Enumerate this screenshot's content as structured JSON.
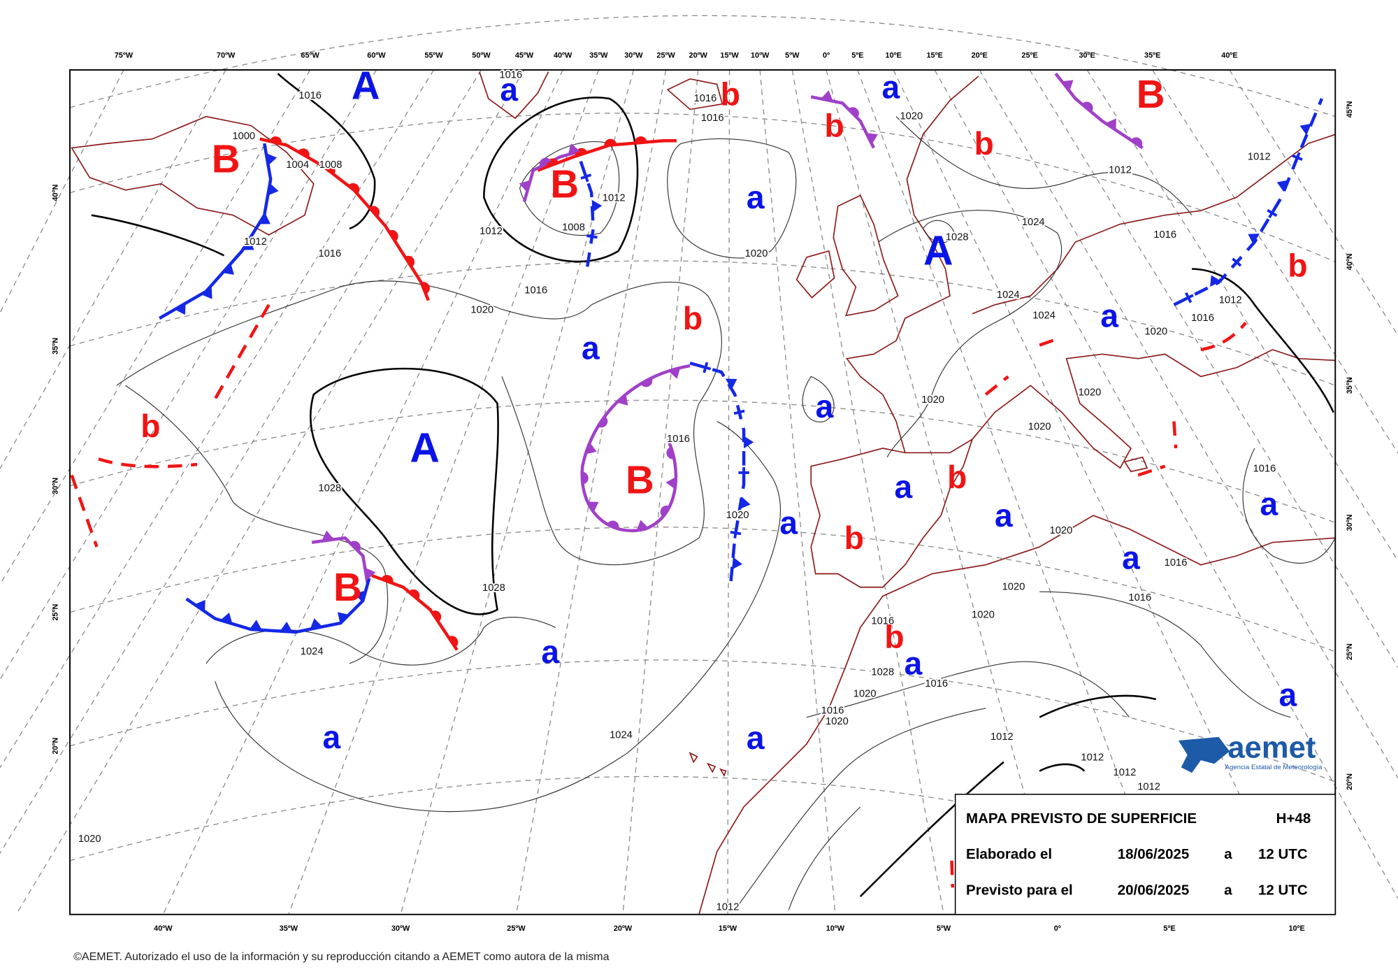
{
  "longitude_labels_top": [
    "75ºW",
    "70ºW",
    "65ºW",
    "60ºW",
    "55ºW",
    "50ºW",
    "45ºW",
    "40ºW",
    "35ºW",
    "30ºW",
    "25ºW",
    "20ºW",
    "15ºW",
    "10ºW",
    "5ºW",
    "0º",
    "5ºE",
    "10ºE",
    "15ºE",
    "20ºE",
    "25ºE",
    "30ºE",
    "35ºE",
    "40ºE"
  ],
  "longitude_labels_bottom": [
    "40ºW",
    "35ºW",
    "30ºW",
    "25ºW",
    "20ºW",
    "15ºW",
    "10ºW",
    "5ºW",
    "0º",
    "5ºE",
    "10ºE"
  ],
  "latitude_labels_left": [
    "40ºN",
    "35ºN",
    "30ºN",
    "25ºN",
    "20ºN"
  ],
  "latitude_labels_right": [
    "45ºN",
    "40ºN",
    "35ºN",
    "30ºN",
    "25ºN",
    "20ºN"
  ],
  "pressure_centers": {
    "high": {
      "color": "#0a14e6",
      "labels": [
        "A",
        "a",
        "a",
        "a",
        "A",
        "a",
        "a",
        "a",
        "A",
        "a",
        "a",
        "a",
        "a",
        "a",
        "a",
        "a",
        "a",
        "a",
        "a"
      ]
    },
    "low": {
      "color": "#f01414",
      "labels": [
        "b",
        "B",
        "b",
        "b",
        "B",
        "B",
        "b",
        "b",
        "b",
        "B",
        "b",
        "b",
        "B",
        "b"
      ]
    }
  },
  "isobar_labels": [
    "1016",
    "1016",
    "1016",
    "1016",
    "1020",
    "1012",
    "1004",
    "1008",
    "1000",
    "1012",
    "1012",
    "1012",
    "1008",
    "1012",
    "1016",
    "1028",
    "1024",
    "1016",
    "1020",
    "1016",
    "1020",
    "1024",
    "1024",
    "1012",
    "1016",
    "1020",
    "1028",
    "1028",
    "1024",
    "1024",
    "1020",
    "1016",
    "1020",
    "1020",
    "1020",
    "1016",
    "1020",
    "1016",
    "1016",
    "1020",
    "1020",
    "1016",
    "1028",
    "1016",
    "1020",
    "1016",
    "1020",
    "1012",
    "1012",
    "1012",
    "1012",
    "1020",
    "1012"
  ],
  "info_box": {
    "title": "MAPA PREVISTO DE SUPERFICIE",
    "lead_time": "H+48",
    "rows": [
      [
        "Elaborado el",
        "18/06/2025",
        "a",
        "12 UTC"
      ],
      [
        "Previsto para el",
        "20/06/2025",
        "a",
        "12 UTC"
      ]
    ]
  },
  "logo": {
    "name": "aemet",
    "subtitle": "Agencia Estatal de Meteorología"
  },
  "copyright": "©AEMET. Autorizado el uso de la información y su reproducción citando a AEMET como autora de la misma"
}
